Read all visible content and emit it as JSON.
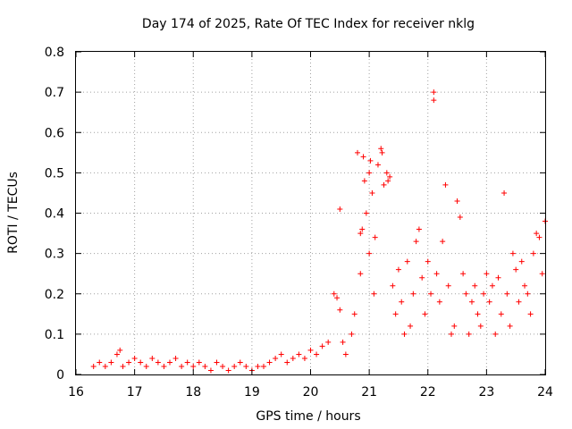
{
  "chart_data": {
    "type": "scatter",
    "title": "Day 174 of 2025, Rate Of TEC Index for receiver nklg",
    "xlabel": "GPS time / hours",
    "ylabel": "ROTI / TECUs",
    "xlim": [
      16,
      24
    ],
    "ylim": [
      0,
      0.8
    ],
    "xticks": [
      "16",
      "17",
      "18",
      "19",
      "20",
      "21",
      "22",
      "23",
      "24"
    ],
    "yticks": [
      "0",
      "0.1",
      "0.2",
      "0.3",
      "0.4",
      "0.5",
      "0.6",
      "0.7",
      "0.8"
    ],
    "grid": true,
    "marker": "+",
    "color": "#ff0000",
    "series": [
      {
        "x": [
          16.3,
          16.4,
          16.5,
          16.6,
          16.7,
          16.75,
          16.8,
          16.9,
          17.0,
          17.1,
          17.2,
          17.3,
          17.4,
          17.5,
          17.6,
          17.7,
          17.8,
          17.9,
          18.0,
          18.1,
          18.2,
          18.3,
          18.4,
          18.5,
          18.6,
          18.7,
          18.8,
          18.9,
          19.0,
          19.1,
          19.2,
          19.3,
          19.4,
          19.5,
          19.6,
          19.7,
          19.8,
          19.9,
          20.0,
          20.1,
          20.2,
          20.3,
          20.4,
          20.45,
          20.5,
          20.5,
          20.55,
          20.6,
          20.7,
          20.75,
          20.8,
          20.85,
          20.85,
          20.88,
          20.9,
          20.92,
          20.95,
          21.0,
          21.0,
          21.02,
          21.05,
          21.08,
          21.1,
          21.15,
          21.2,
          21.22,
          21.25,
          21.3,
          21.32,
          21.35,
          21.4,
          21.45,
          21.5,
          21.55,
          21.6,
          21.65,
          21.7,
          21.75,
          21.8,
          21.85,
          21.9,
          21.95,
          22.0,
          22.05,
          22.1,
          22.1,
          22.15,
          22.2,
          22.25,
          22.3,
          22.35,
          22.4,
          22.45,
          22.5,
          22.55,
          22.6,
          22.65,
          22.7,
          22.75,
          22.8,
          22.85,
          22.9,
          22.95,
          23.0,
          23.05,
          23.1,
          23.15,
          23.2,
          23.25,
          23.3,
          23.35,
          23.4,
          23.45,
          23.5,
          23.55,
          23.6,
          23.65,
          23.7,
          23.75,
          23.8,
          23.85,
          23.9,
          23.95,
          24.0
        ],
        "y": [
          0.02,
          0.03,
          0.02,
          0.03,
          0.05,
          0.06,
          0.02,
          0.03,
          0.04,
          0.03,
          0.02,
          0.04,
          0.03,
          0.02,
          0.03,
          0.04,
          0.02,
          0.03,
          0.02,
          0.03,
          0.02,
          0.01,
          0.03,
          0.02,
          0.01,
          0.02,
          0.03,
          0.02,
          0.01,
          0.02,
          0.02,
          0.03,
          0.04,
          0.05,
          0.03,
          0.04,
          0.05,
          0.04,
          0.06,
          0.05,
          0.07,
          0.08,
          0.2,
          0.19,
          0.41,
          0.16,
          0.08,
          0.05,
          0.1,
          0.15,
          0.55,
          0.35,
          0.25,
          0.36,
          0.54,
          0.48,
          0.4,
          0.5,
          0.3,
          0.53,
          0.45,
          0.2,
          0.34,
          0.52,
          0.56,
          0.55,
          0.47,
          0.5,
          0.48,
          0.49,
          0.22,
          0.15,
          0.26,
          0.18,
          0.1,
          0.28,
          0.12,
          0.2,
          0.33,
          0.36,
          0.24,
          0.15,
          0.28,
          0.2,
          0.7,
          0.68,
          0.25,
          0.18,
          0.33,
          0.47,
          0.22,
          0.1,
          0.12,
          0.43,
          0.39,
          0.25,
          0.2,
          0.1,
          0.18,
          0.22,
          0.15,
          0.12,
          0.2,
          0.25,
          0.18,
          0.22,
          0.1,
          0.24,
          0.15,
          0.45,
          0.2,
          0.12,
          0.3,
          0.26,
          0.18,
          0.28,
          0.22,
          0.2,
          0.15,
          0.3,
          0.35,
          0.34,
          0.25,
          0.38
        ]
      }
    ]
  }
}
